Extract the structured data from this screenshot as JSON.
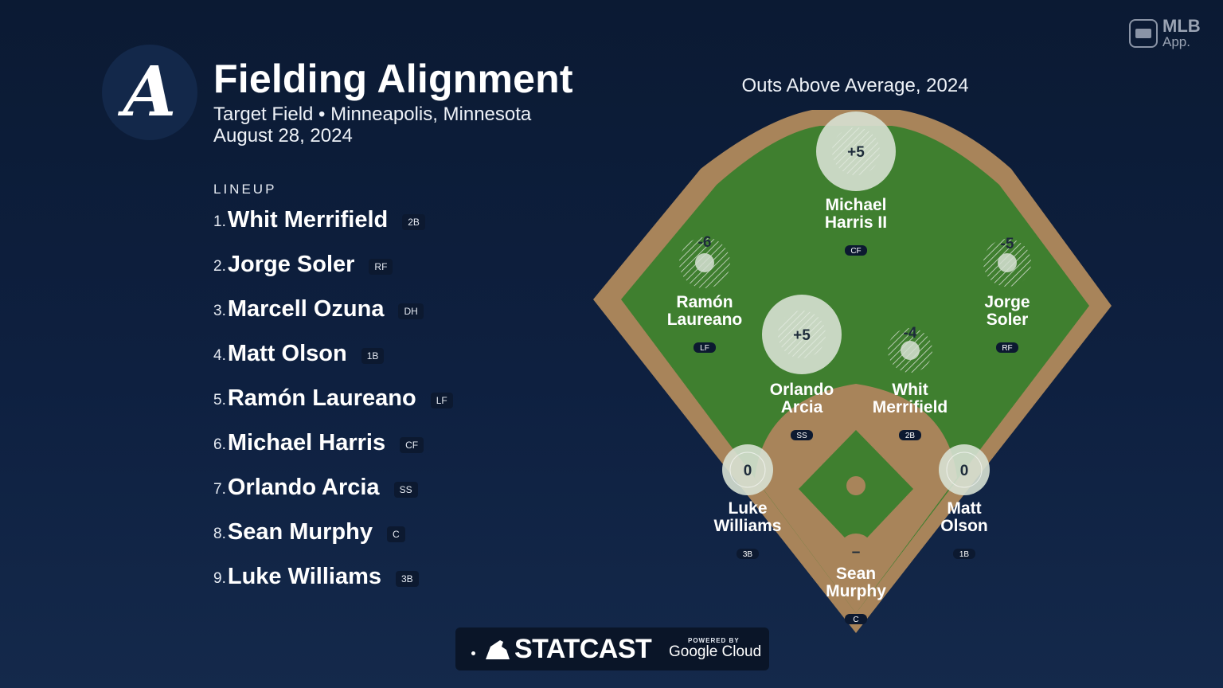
{
  "header": {
    "logo_letter": "A",
    "title": "Fielding Alignment",
    "subtitle": "Target Field • Minneapolis, Minnesota",
    "date": "August 28, 2024"
  },
  "lineup": {
    "label": "LINEUP",
    "items": [
      {
        "num": "1.",
        "name": "Whit Merrifield",
        "pos": "2B"
      },
      {
        "num": "2.",
        "name": "Jorge Soler",
        "pos": "RF"
      },
      {
        "num": "3.",
        "name": "Marcell Ozuna",
        "pos": "DH"
      },
      {
        "num": "4.",
        "name": "Matt Olson",
        "pos": "1B"
      },
      {
        "num": "5.",
        "name": "Ramón Laureano",
        "pos": "LF"
      },
      {
        "num": "6.",
        "name": "Michael Harris",
        "pos": "CF"
      },
      {
        "num": "7.",
        "name": "Orlando Arcia",
        "pos": "SS"
      },
      {
        "num": "8.",
        "name": "Sean Murphy",
        "pos": "C"
      },
      {
        "num": "9.",
        "name": "Luke Williams",
        "pos": "3B"
      }
    ]
  },
  "field": {
    "title": "Outs Above Average, 2024",
    "colors": {
      "grass": "#3f7f2f",
      "dirt": "#a8845a",
      "positive": "#d7e1d3",
      "negative_hatch": "#c9d3c6"
    },
    "fielders": [
      {
        "id": "cf",
        "name_lines": [
          "Michael",
          "Harris II"
        ],
        "pos": "CF",
        "oaa_label": "+5",
        "oaa": 5
      },
      {
        "id": "lf",
        "name_lines": [
          "Ramón",
          "Laureano"
        ],
        "pos": "LF",
        "oaa_label": "-6",
        "oaa": -6
      },
      {
        "id": "rf",
        "name_lines": [
          "Jorge",
          "Soler"
        ],
        "pos": "RF",
        "oaa_label": "-5",
        "oaa": -5
      },
      {
        "id": "ss",
        "name_lines": [
          "Orlando",
          "Arcia"
        ],
        "pos": "SS",
        "oaa_label": "+5",
        "oaa": 5
      },
      {
        "id": "2b",
        "name_lines": [
          "Whit",
          "Merrifield"
        ],
        "pos": "2B",
        "oaa_label": "-4",
        "oaa": -4
      },
      {
        "id": "3b",
        "name_lines": [
          "Luke",
          "Williams"
        ],
        "pos": "3B",
        "oaa_label": "0",
        "oaa": 0
      },
      {
        "id": "1b",
        "name_lines": [
          "Matt",
          "Olson"
        ],
        "pos": "1B",
        "oaa_label": "0",
        "oaa": 0
      },
      {
        "id": "c",
        "name_lines": [
          "Sean",
          "Murphy"
        ],
        "pos": "C",
        "oaa_label": "–",
        "oaa": null
      }
    ]
  },
  "branding": {
    "mlb": "MLB",
    "app": "App.",
    "footer_brand": "STATCAST",
    "footer_powered": "POWERED BY",
    "footer_cloud": "Google Cloud"
  }
}
